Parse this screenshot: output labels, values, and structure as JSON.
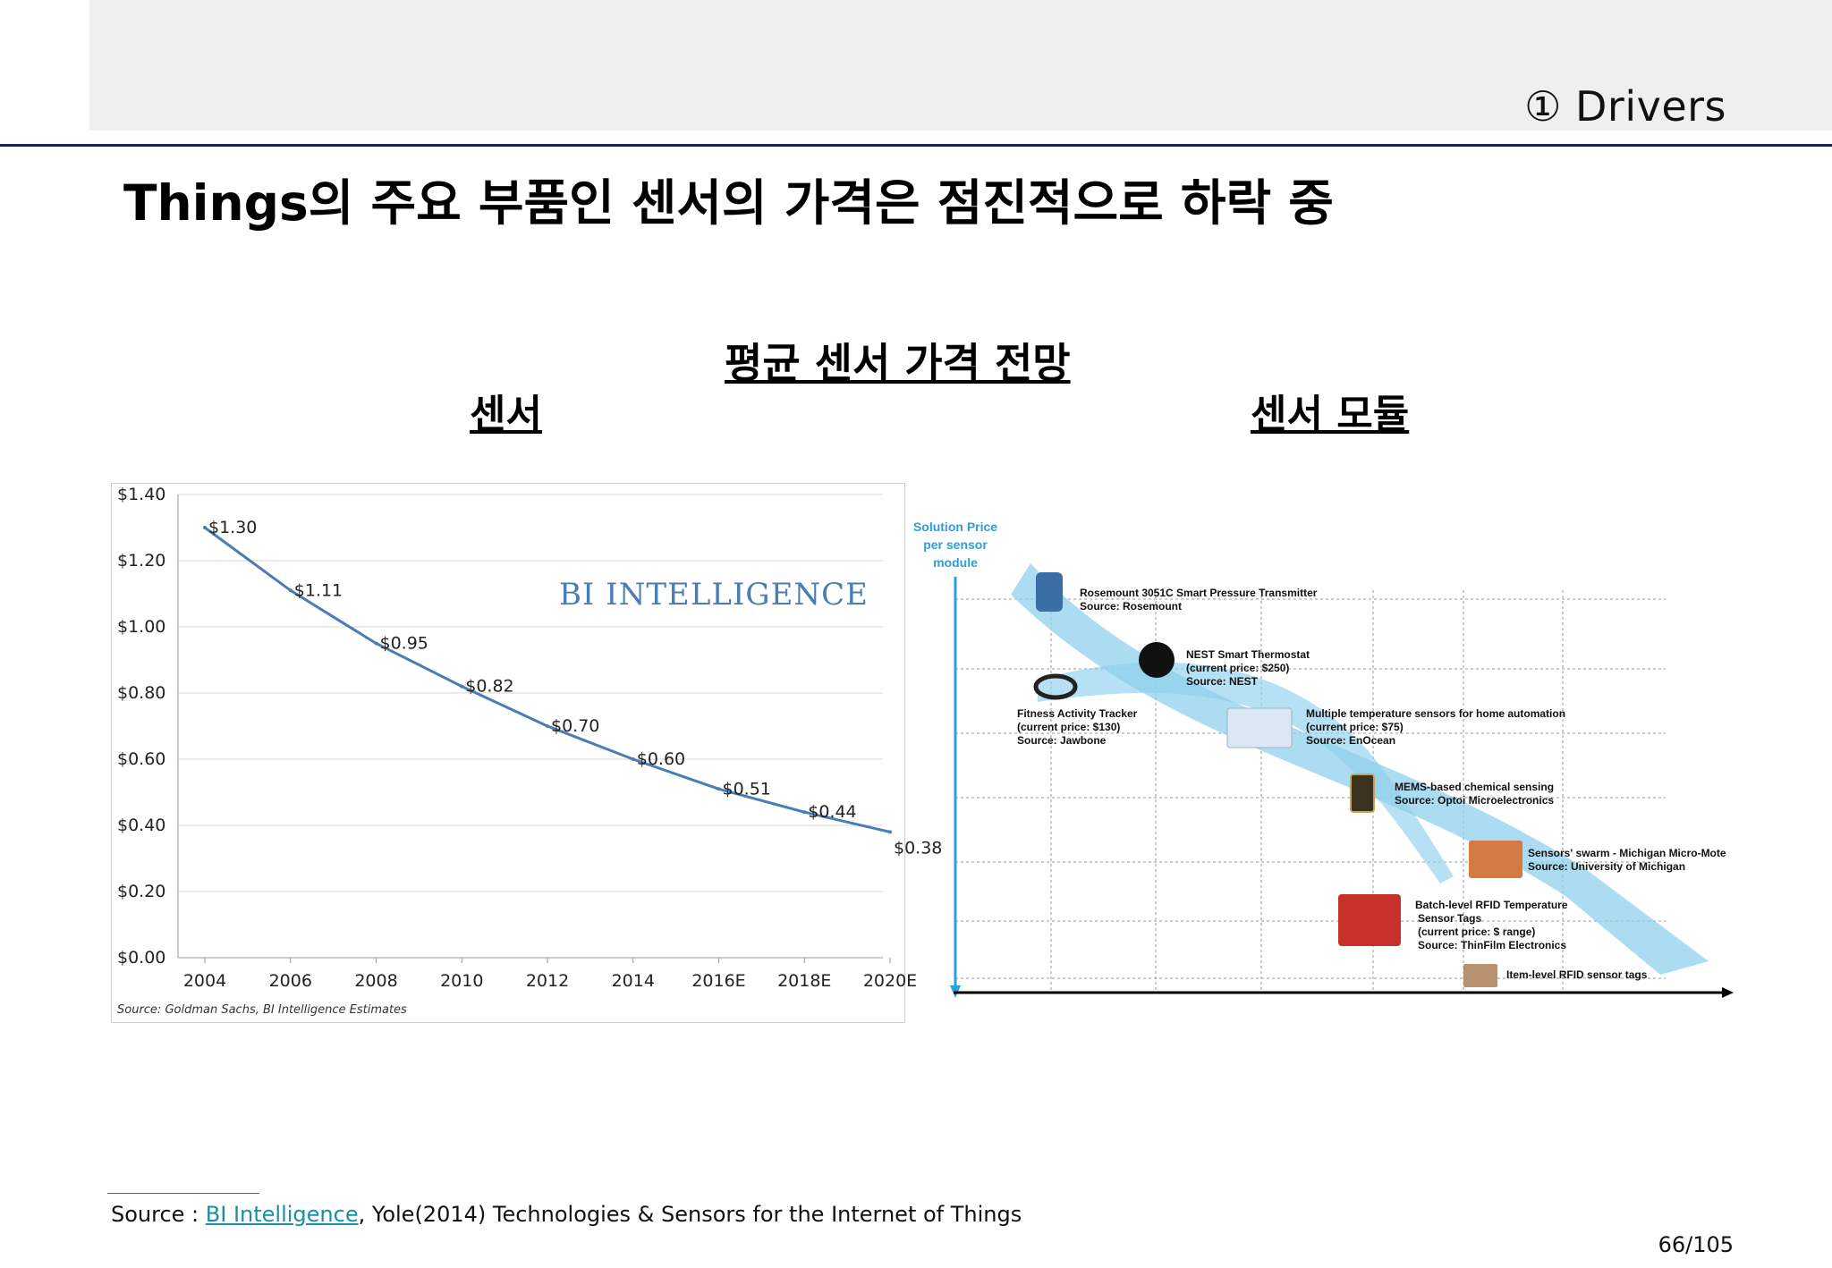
{
  "header": {
    "section_label": "① Drivers",
    "title": "Things의 주요 부품인 센서의 가격은 점진적으로 하락 중"
  },
  "main": {
    "subtitle": "평균 센서 가격 전망",
    "left_label": "센서",
    "right_label": "센서 모듈"
  },
  "colors": {
    "line": "#4a7db5",
    "header_rule": "#1c1f6e",
    "arrow": "#8fd0ec",
    "axis_blue": "#2aa0da"
  },
  "chart_data": [
    {
      "type": "line",
      "categories": [
        "2004",
        "2006",
        "2008",
        "2010",
        "2012",
        "2014",
        "2016E",
        "2018E",
        "2020E"
      ],
      "series": [
        {
          "values": [
            1.3,
            1.11,
            0.95,
            0.82,
            0.7,
            0.6,
            0.51,
            0.44,
            0.38
          ]
        }
      ],
      "data_labels": [
        "$1.30",
        "$1.11",
        "$0.95",
        "$0.82",
        "$0.70",
        "$0.60",
        "$0.51",
        "$0.44",
        "$0.38"
      ],
      "y_ticks": [
        "$0.00",
        "$0.20",
        "$0.40",
        "$0.60",
        "$0.80",
        "$1.00",
        "$1.20",
        "$1.40"
      ],
      "ylim": [
        0,
        1.4
      ],
      "grid": true,
      "watermark": "BI INTELLIGENCE",
      "source": "Source: Goldman Sachs, BI Intelligence Estimates"
    },
    {
      "type": "diagram",
      "ylabel": [
        "Solution Price",
        "per sensor",
        "module"
      ],
      "items": [
        {
          "name": "Rosemount 3051C Smart Pressure Transmitter",
          "lines": [
            "Source: Rosemount"
          ]
        },
        {
          "name": "NEST Smart Thermostat",
          "lines": [
            "(current price: $250)",
            "Source: NEST"
          ]
        },
        {
          "name": "Fitness Activity Tracker",
          "lines": [
            "(current price: $130)",
            "Source: Jawbone"
          ]
        },
        {
          "name": "Multiple temperature sensors for home automation",
          "lines": [
            "(current price: $75)",
            "Source: EnOcean"
          ]
        },
        {
          "name": "MEMS-based chemical sensing",
          "lines": [
            "Source: Optoi Microelectronics"
          ]
        },
        {
          "name": "Sensors' swarm - Michigan Micro-Mote",
          "lines": [
            "Source: University of Michigan"
          ]
        },
        {
          "name": "Batch-level RFID Temperature",
          "lines": [
            "Sensor Tags",
            "(current price: $ range)",
            "Source: ThinFilm Electronics"
          ]
        },
        {
          "name": "Item-level RFID sensor tags",
          "lines": []
        }
      ]
    }
  ],
  "footer": {
    "source_prefix": "Source : ",
    "source_link": "BI Intelligence",
    "source_rest": ", Yole(2014) Technologies & Sensors for the Internet of Things",
    "page": "66/105"
  }
}
